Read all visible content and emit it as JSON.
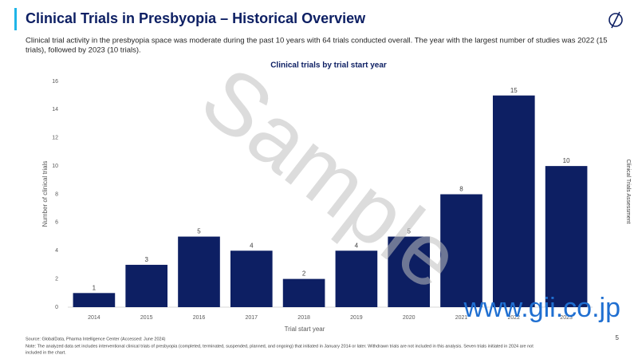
{
  "header": {
    "title": "Clinical Trials in Presbyopia – Historical Overview",
    "description": [
      "Clinical trial activity in the presbyopia space was moderate during the past 10 years with 64 trials conducted overall. The year with the largest number of studies was 2022 (15",
      "trials), followed by 2023 (10 trials)."
    ]
  },
  "chart_data": {
    "type": "bar",
    "title": "Clinical trials by trial start year",
    "x_label": "Trial start year",
    "y_label": "Number of clinical trials",
    "categories": [
      "2014",
      "2015",
      "2016",
      "2017",
      "2018",
      "2019",
      "2020",
      "2021",
      "2022",
      "2023"
    ],
    "values": [
      1,
      3,
      5,
      4,
      2,
      4,
      5,
      8,
      15,
      10
    ],
    "color": "#0d1f63",
    "ylim": [
      0,
      16
    ],
    "yticks": [
      0,
      2,
      4,
      6,
      8,
      10,
      12,
      14,
      16
    ],
    "grid": false
  },
  "side_label": "Clinical Trials Assessment",
  "footer": {
    "source": "Source: GlobalData, Pharma Intelligence Center (Accessed: June 2024)",
    "note": [
      "Note: The analyzed data set includes interventional clinical trials of presbyopia (completed, terminated, suspended, planned, and ongoing) that initiated in January 2014 or later. Withdrawn trials are not included in this analysis. Seven trials initiated in 2024 are not",
      "included in the chart."
    ],
    "page_number": "5"
  },
  "watermark": {
    "text": "Sample",
    "url": "www.gii.co.jp"
  }
}
